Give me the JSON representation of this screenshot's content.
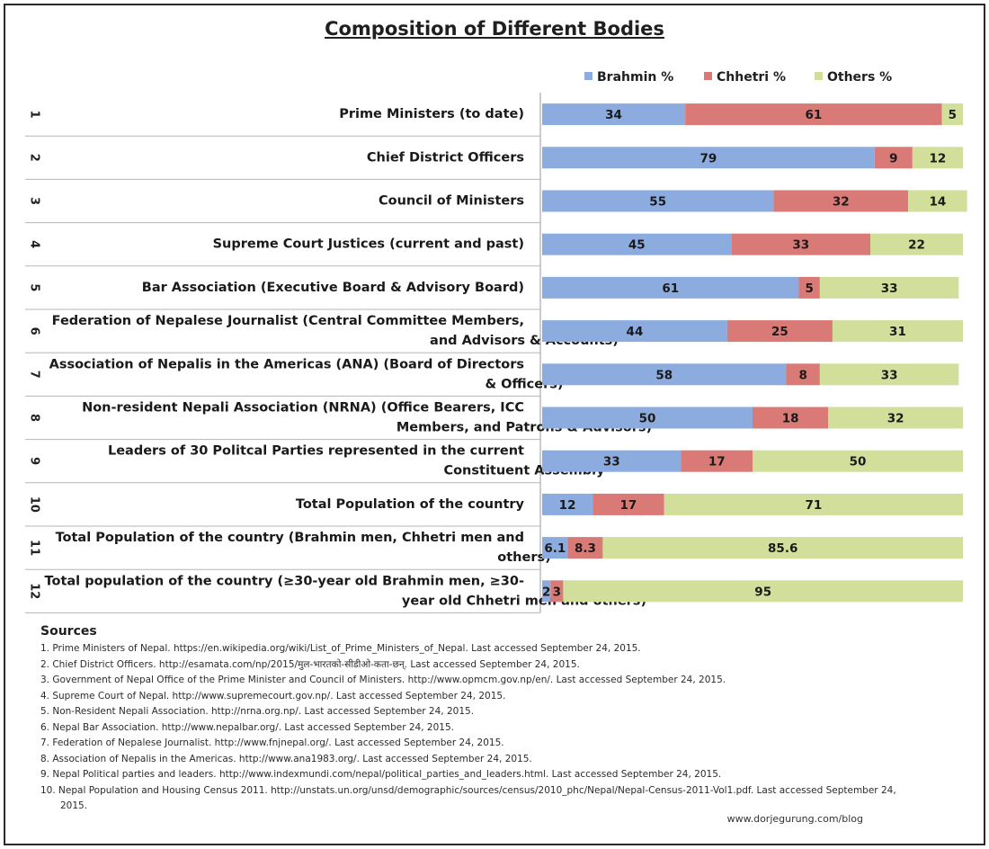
{
  "chart_data": {
    "type": "bar",
    "orientation": "horizontal",
    "stacked": true,
    "title": "Composition of Different Bodies",
    "legend_position": "top-right",
    "xlim": [
      0,
      100
    ],
    "row_numbers": [
      "1",
      "2",
      "3",
      "4",
      "5",
      "6",
      "7",
      "8",
      "9",
      "10",
      "11",
      "12"
    ],
    "categories": [
      "Prime Ministers (to date)",
      "Chief District Officers",
      "Council of Ministers",
      "Supreme Court Justices (current and past)",
      "Bar Association (Executive Board & Advisory Board)",
      "Federation of Nepalese Journalist (Central Committee Members, and Advisors & Accounts)",
      "Association of Nepalis in the Americas (ANA) (Board of Directors & Officers)",
      "Non-resident Nepali Association (NRNA) (Office Bearers, ICC Members, and Patrons & Advisors)",
      "Leaders of 30 Politcal Parties represented in the current Constituent Assembly",
      "Total Population of the country",
      "Total Population of the country (Brahmin men, Chhetri men and others)",
      "Total population of the country (≥30-year old Brahmin men, ≥30-year old Chhetri men and others)"
    ],
    "category_lines": [
      [
        "Prime Ministers (to date)"
      ],
      [
        "Chief District Officers"
      ],
      [
        "Council of Ministers"
      ],
      [
        "Supreme Court Justices (current and past)"
      ],
      [
        "Bar Association (Executive Board & Advisory Board)"
      ],
      [
        "Federation of Nepalese Journalist (Central Committee Members,",
        "and Advisors & Accounts)"
      ],
      [
        "Association of Nepalis in the Americas (ANA) (Board of Directors",
        "& Officers)"
      ],
      [
        "Non-resident Nepali Association (NRNA) (Office Bearers, ICC",
        "Members, and Patrons & Advisors)"
      ],
      [
        "Leaders of 30 Politcal Parties represented in the current",
        "Constituent Assembly"
      ],
      [
        "Total Population of the country"
      ],
      [
        "Total Population of the country (Brahmin men, Chhetri men and",
        "others)"
      ],
      [
        "Total population of the country (≥30-year old Brahmin men, ≥30-",
        "year old Chhetri men and others)"
      ]
    ],
    "series": [
      {
        "name": "Brahmin %",
        "color": "#8cabdf",
        "values": [
          34,
          79,
          55,
          45,
          61,
          44,
          58,
          50,
          33,
          12,
          6.1,
          2
        ],
        "labels": [
          "34",
          "79",
          "55",
          "45",
          "61",
          "44",
          "58",
          "50",
          "33",
          "12",
          "6.1",
          "2"
        ]
      },
      {
        "name": "Chhetri %",
        "color": "#d97a76",
        "values": [
          61,
          9,
          32,
          33,
          5,
          25,
          8,
          18,
          17,
          17,
          8.3,
          3
        ],
        "labels": [
          "61",
          "9",
          "32",
          "33",
          "5",
          "25",
          "8",
          "18",
          "17",
          "17",
          "8.3",
          "3"
        ]
      },
      {
        "name": "Others %",
        "color": "#d1df9b",
        "values": [
          5,
          12,
          14,
          22,
          33,
          31,
          33,
          32,
          50,
          71,
          85.6,
          95
        ],
        "labels": [
          "5",
          "12",
          "14",
          "22",
          "33",
          "31",
          "33",
          "32",
          "50",
          "71",
          "85.6",
          "95"
        ]
      }
    ]
  },
  "sources": {
    "heading": "Sources",
    "items": [
      "1. Prime Ministers of Nepal. https://en.wikipedia.org/wiki/List_of_Prime_Ministers_of_Nepal. Last accessed September 24, 2015.",
      "2. Chief District Officers. http://esamata.com/np/2015/मुल-भारतको-सीडीओ-कता-छन्. Last accessed September 24, 2015.",
      "3. Government of Nepal Office of the Prime Minister and Council of Ministers. http://www.opmcm.gov.np/en/. Last accessed September 24, 2015.",
      "4. Supreme Court of Nepal. http://www.supremecourt.gov.np/. Last accessed September 24, 2015.",
      "5. Non-Resident Nepali Association. http://nrna.org.np/. Last accessed September 24, 2015.",
      "6. Nepal Bar Association. http://www.nepalbar.org/. Last accessed September 24, 2015.",
      "7. Federation of Nepalese Journalist. http://www.fnjnepal.org/. Last accessed September 24, 2015.",
      "8. Association of Nepalis in the Americas. http://www.ana1983.org/. Last accessed September 24, 2015.",
      "9. Nepal Political parties and leaders. http://www.indexmundi.com/nepal/political_parties_and_leaders.html. Last accessed September 24, 2015.",
      "10. Nepal Population and Housing Census 2011. http://unstats.un.org/unsd/demographic/sources/census/2010_phc/Nepal/Nepal-Census-2011-Vol1.pdf. Last accessed September 24, 2015."
    ]
  },
  "credit": "www.dorjegurung.com/blog"
}
